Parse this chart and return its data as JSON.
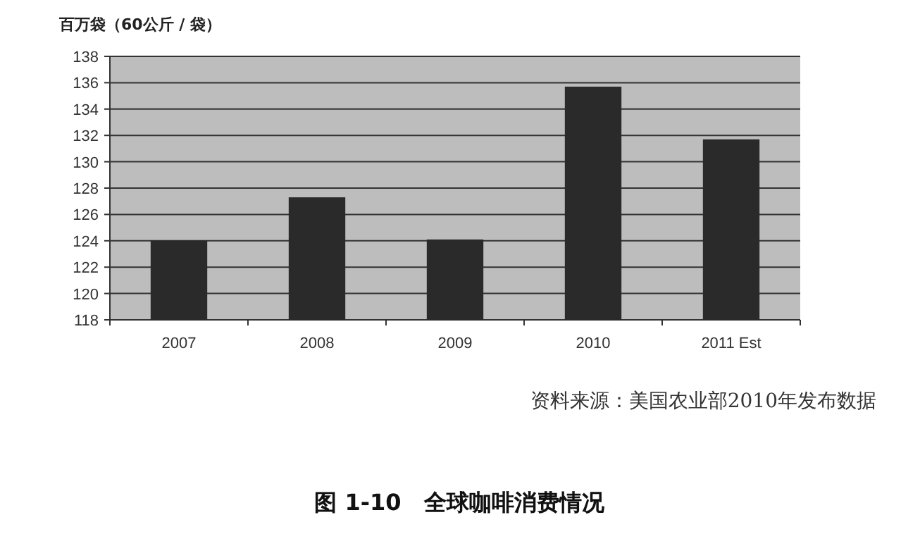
{
  "chart_data": {
    "type": "bar",
    "ylabel": "百万袋（60公斤 / 袋）",
    "title": "图 1-10　全球咖啡消费情况",
    "annotations": [
      "资料来源：美国农业部2010年发布数据"
    ],
    "categories": [
      "2007",
      "2008",
      "2009",
      "2010",
      "2011 Est"
    ],
    "values": [
      124.0,
      127.3,
      124.1,
      135.7,
      131.7
    ],
    "color": "#2a2a2a",
    "ylim": [
      118,
      138
    ],
    "yticks": [
      118,
      120,
      122,
      124,
      126,
      128,
      130,
      132,
      134,
      136,
      138
    ],
    "grid": "y"
  }
}
